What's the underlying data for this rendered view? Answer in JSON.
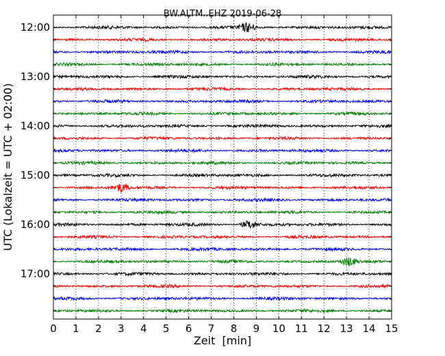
{
  "chart_data": {
    "type": "line",
    "title": "BW.ALTM..EHZ 2019-06-28",
    "xlabel": "Zeit  [min]",
    "ylabel": "UTC (Lokalzeit = UTC + 02:00)",
    "xlim": [
      0,
      15
    ],
    "x_ticks": [
      "0",
      "1",
      "2",
      "3",
      "4",
      "5",
      "6",
      "7",
      "8",
      "9",
      "10",
      "11",
      "12",
      "13",
      "14",
      "15"
    ],
    "y_ticks": [
      "12:00",
      "13:00",
      "14:00",
      "15:00",
      "16:00",
      "17:00"
    ],
    "grid": "vertical dotted",
    "trace_interval_min": 15,
    "start_time": "12:00",
    "colors": [
      "#000000",
      "#ff0000",
      "#0000ff",
      "#008000"
    ],
    "traces": [
      {
        "time": "12:00",
        "color": "#000000"
      },
      {
        "time": "12:15",
        "color": "#ff0000"
      },
      {
        "time": "12:30",
        "color": "#0000ff"
      },
      {
        "time": "12:45",
        "color": "#008000"
      },
      {
        "time": "13:00",
        "color": "#000000"
      },
      {
        "time": "13:15",
        "color": "#ff0000"
      },
      {
        "time": "13:30",
        "color": "#0000ff"
      },
      {
        "time": "13:45",
        "color": "#008000"
      },
      {
        "time": "14:00",
        "color": "#000000"
      },
      {
        "time": "14:15",
        "color": "#ff0000"
      },
      {
        "time": "14:30",
        "color": "#0000ff"
      },
      {
        "time": "14:45",
        "color": "#008000"
      },
      {
        "time": "15:00",
        "color": "#000000"
      },
      {
        "time": "15:15",
        "color": "#ff0000"
      },
      {
        "time": "15:30",
        "color": "#0000ff"
      },
      {
        "time": "15:45",
        "color": "#008000"
      },
      {
        "time": "16:00",
        "color": "#000000"
      },
      {
        "time": "16:15",
        "color": "#ff0000"
      },
      {
        "time": "16:30",
        "color": "#0000ff"
      },
      {
        "time": "16:45",
        "color": "#008000"
      },
      {
        "time": "17:00",
        "color": "#000000"
      },
      {
        "time": "17:15",
        "color": "#ff0000"
      },
      {
        "time": "17:30",
        "color": "#0000ff"
      },
      {
        "time": "17:45",
        "color": "#008000"
      }
    ],
    "events": [
      {
        "trace": "15:15",
        "minute": 3.0
      },
      {
        "trace": "16:00",
        "minute": 8.7
      },
      {
        "trace": "16:45",
        "minute": 13.1
      },
      {
        "trace": "12:00",
        "minute": 8.6
      }
    ]
  }
}
